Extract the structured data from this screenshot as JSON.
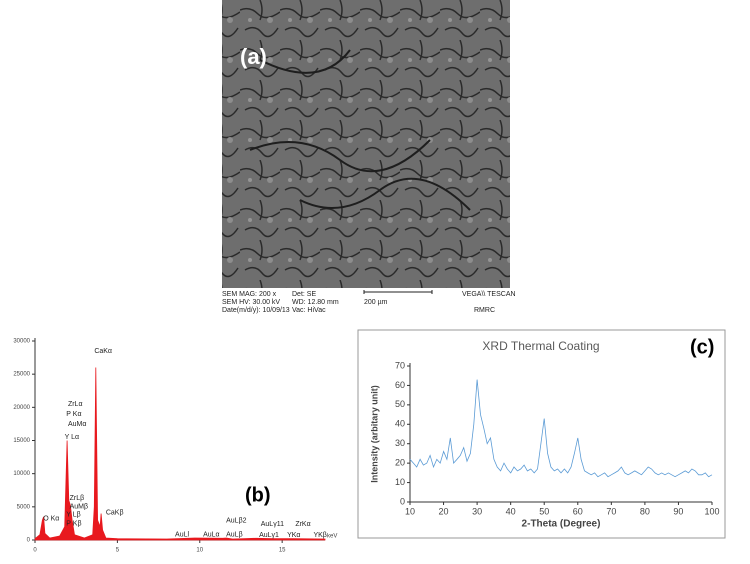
{
  "sem": {
    "label": "(a)",
    "info": [
      "SEM MAG: 200 x",
      "SEM HV: 30.00 kV",
      "Date(m/d/y): 10/09/13",
      "Det: SE",
      "WD: 12.80 mm",
      "Vac: HiVac",
      "200 µm",
      "VEGA\\\\ TESCAN",
      "RMRC"
    ]
  },
  "chart_data": [
    {
      "type": "area",
      "panel_label": "(b)",
      "x_unit": "keV",
      "color": "#e8191e",
      "x": [
        0,
        0.3,
        0.45,
        0.52,
        0.6,
        0.9,
        1.5,
        1.8,
        1.95,
        2.05,
        2.15,
        2.25,
        2.4,
        3.0,
        3.5,
        3.6,
        3.69,
        3.8,
        3.95,
        4.01,
        4.1,
        4.3,
        5,
        8,
        9.7,
        11.4,
        11.6,
        12,
        13.4,
        14.5,
        15.7,
        17.6
      ],
      "values": [
        200,
        800,
        3000,
        3500,
        1000,
        300,
        600,
        2000,
        15000,
        6000,
        5200,
        3000,
        800,
        300,
        800,
        5000,
        26000,
        3000,
        2000,
        4000,
        1500,
        300,
        200,
        150,
        300,
        250,
        300,
        150,
        250,
        200,
        200,
        150
      ],
      "xlim": [
        0,
        17.6
      ],
      "ylim": [
        0,
        30000
      ],
      "xticks": [
        0,
        5,
        10,
        15
      ],
      "yticks": [
        0,
        5000,
        10000,
        15000,
        20000,
        25000,
        30000
      ],
      "annotations": [
        {
          "text": "CaKα",
          "x": 3.6,
          "y": 28500
        },
        {
          "text": "ZrLα",
          "x": 2.0,
          "y": 20500
        },
        {
          "text": "P Kα",
          "x": 1.9,
          "y": 19000
        },
        {
          "text": "AuMα",
          "x": 2.0,
          "y": 17500
        },
        {
          "text": "Y Lα",
          "x": 1.8,
          "y": 15500
        },
        {
          "text": "ZrLβ",
          "x": 2.1,
          "y": 6300
        },
        {
          "text": "AuMβ",
          "x": 2.1,
          "y": 5000
        },
        {
          "text": "Y Lβ",
          "x": 1.9,
          "y": 3800
        },
        {
          "text": "P Kβ",
          "x": 1.9,
          "y": 2500
        },
        {
          "text": "O Kα",
          "x": 0.5,
          "y": 3200
        },
        {
          "text": "CaKβ",
          "x": 4.3,
          "y": 4100
        },
        {
          "text": "AuLl",
          "x": 8.5,
          "y": 800
        },
        {
          "text": "AuLα",
          "x": 10.2,
          "y": 800
        },
        {
          "text": "AuLβ2",
          "x": 11.6,
          "y": 2900
        },
        {
          "text": "AuLβ",
          "x": 11.6,
          "y": 800
        },
        {
          "text": "AuLγ11",
          "x": 13.7,
          "y": 2400
        },
        {
          "text": "AuLγ1",
          "x": 13.6,
          "y": 700
        },
        {
          "text": "ZrKα",
          "x": 15.8,
          "y": 2400
        },
        {
          "text": "YKα",
          "x": 15.3,
          "y": 700
        },
        {
          "text": "YKβ",
          "x": 16.9,
          "y": 700
        }
      ]
    },
    {
      "type": "line",
      "title": "XRD Thermal Coating",
      "panel_label": "(c)",
      "x_label": "2-Theta (Degree)",
      "y_label": "Intensity (arbitary unit)",
      "color": "#5b9bd5",
      "x": [
        10,
        11,
        12,
        13,
        14,
        15,
        16,
        17,
        18,
        19,
        20,
        21,
        22,
        23,
        24,
        25,
        26,
        27,
        28,
        29,
        30,
        31,
        32,
        33,
        34,
        35,
        36,
        37,
        38,
        39,
        40,
        41,
        42,
        43,
        44,
        45,
        46,
        47,
        48,
        49,
        50,
        51,
        52,
        53,
        54,
        55,
        56,
        57,
        58,
        59,
        60,
        61,
        62,
        63,
        64,
        65,
        66,
        67,
        68,
        69,
        70,
        71,
        72,
        73,
        74,
        75,
        76,
        77,
        78,
        79,
        80,
        81,
        82,
        83,
        84,
        85,
        86,
        87,
        88,
        89,
        90,
        91,
        92,
        93,
        94,
        95,
        96,
        97,
        98,
        99,
        100
      ],
      "values": [
        22,
        20,
        18,
        22,
        19,
        20,
        24,
        18,
        22,
        20,
        26,
        22,
        33,
        20,
        22,
        24,
        28,
        21,
        25,
        40,
        63,
        45,
        38,
        30,
        33,
        22,
        18,
        16,
        20,
        17,
        15,
        18,
        16,
        17,
        19,
        16,
        17,
        15,
        17,
        30,
        43,
        25,
        18,
        16,
        17,
        15,
        17,
        15,
        18,
        25,
        33,
        22,
        16,
        15,
        14,
        15,
        13,
        14,
        15,
        13,
        14,
        15,
        16,
        18,
        15,
        14,
        15,
        16,
        15,
        14,
        16,
        18,
        17,
        15,
        14,
        15,
        14,
        15,
        14,
        13,
        14,
        15,
        16,
        15,
        17,
        16,
        14,
        14,
        15,
        13,
        14
      ],
      "xlim": [
        10,
        100
      ],
      "ylim": [
        0,
        70
      ],
      "xticks": [
        10,
        20,
        30,
        40,
        50,
        60,
        70,
        80,
        90,
        100
      ],
      "yticks": [
        0,
        10,
        20,
        30,
        40,
        50,
        60,
        70
      ]
    }
  ]
}
